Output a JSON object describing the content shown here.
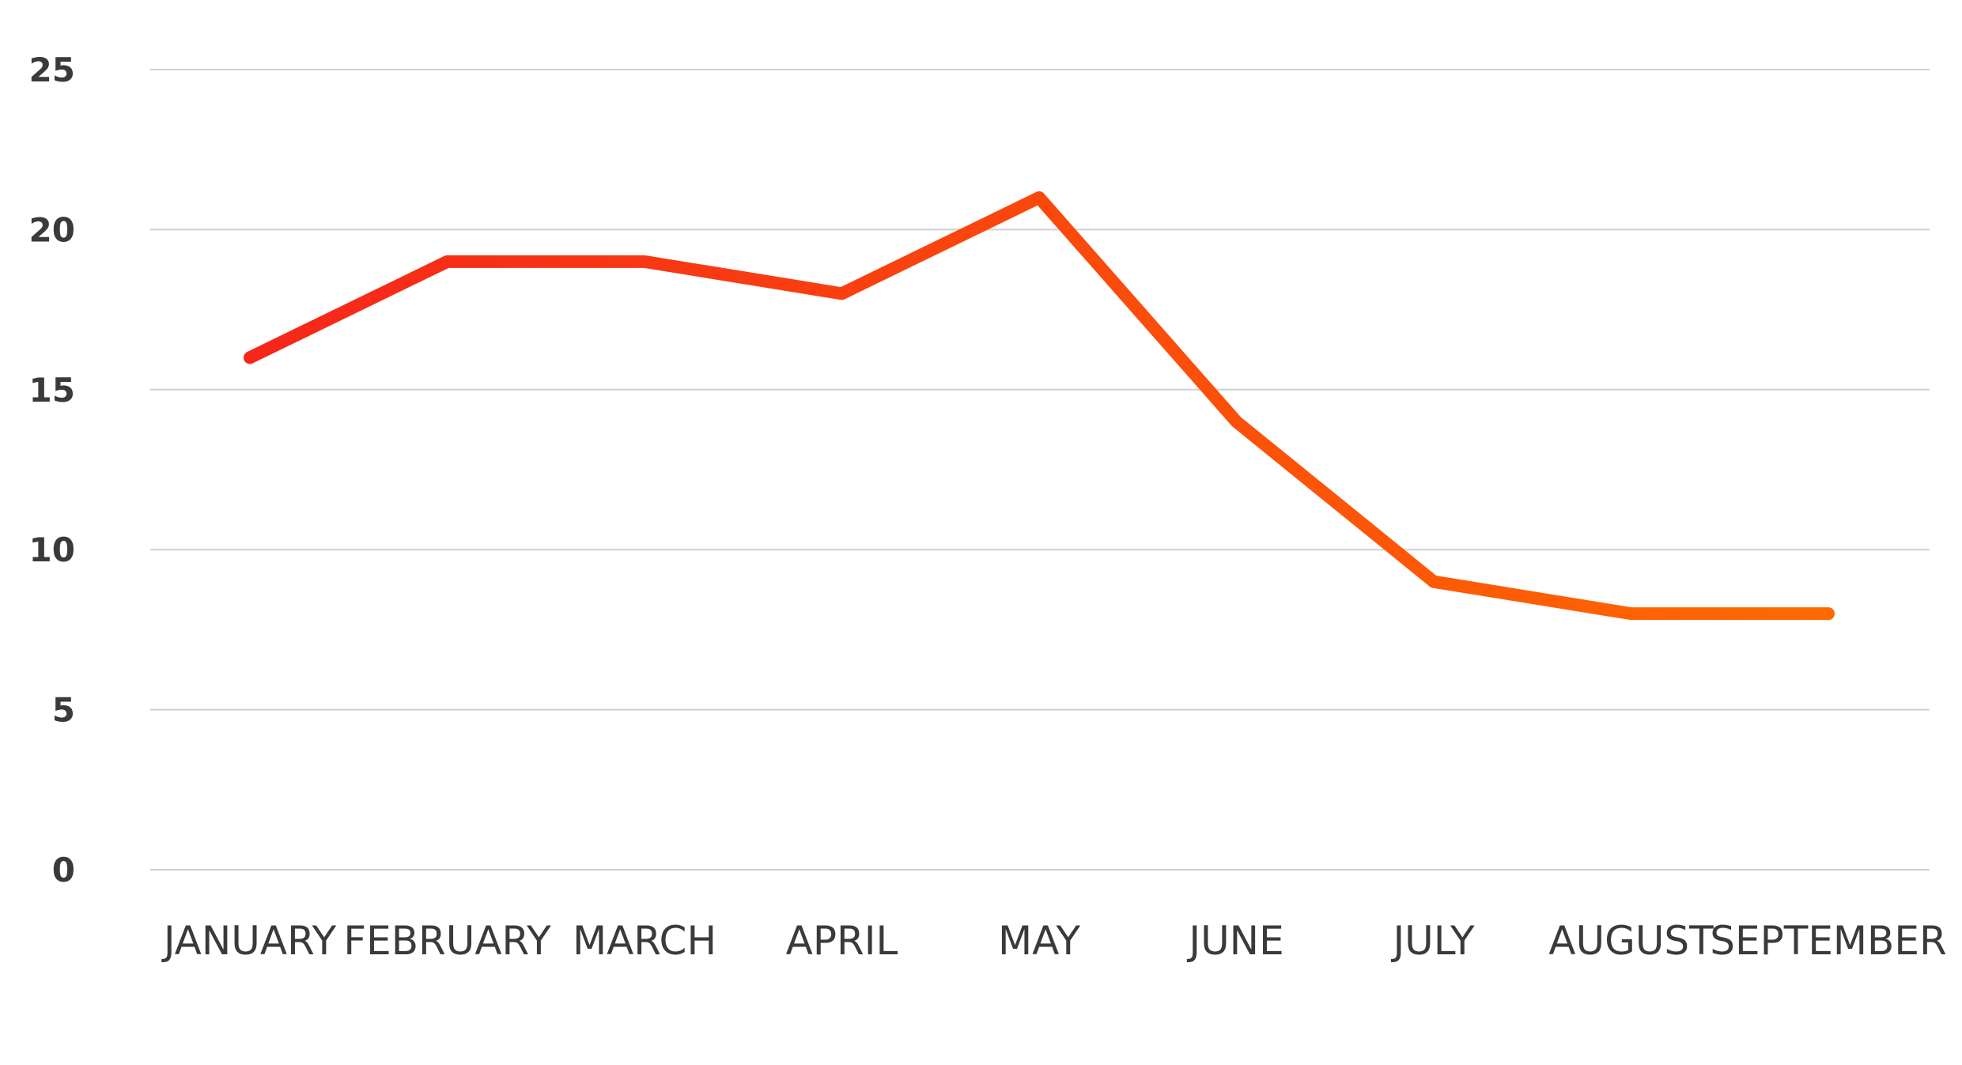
{
  "chart_data": {
    "type": "line",
    "title": "",
    "xlabel": "",
    "ylabel": "",
    "categories": [
      "JANUARY",
      "FEBRUARY",
      "MARCH",
      "APRIL",
      "MAY",
      "JUNE",
      "JULY",
      "AUGUST",
      "SEPTEMBER"
    ],
    "series": [
      {
        "values": [
          16,
          19,
          19,
          18,
          21,
          14,
          9,
          8,
          8
        ],
        "color_start": "#f5261a",
        "color_end": "#ff6a00"
      }
    ],
    "ylim": [
      0,
      25
    ],
    "yticks": [
      "0",
      "5",
      "10",
      "15",
      "20",
      "25"
    ],
    "grid": true,
    "grid_color": "#cfcfcf",
    "legend": "none"
  }
}
